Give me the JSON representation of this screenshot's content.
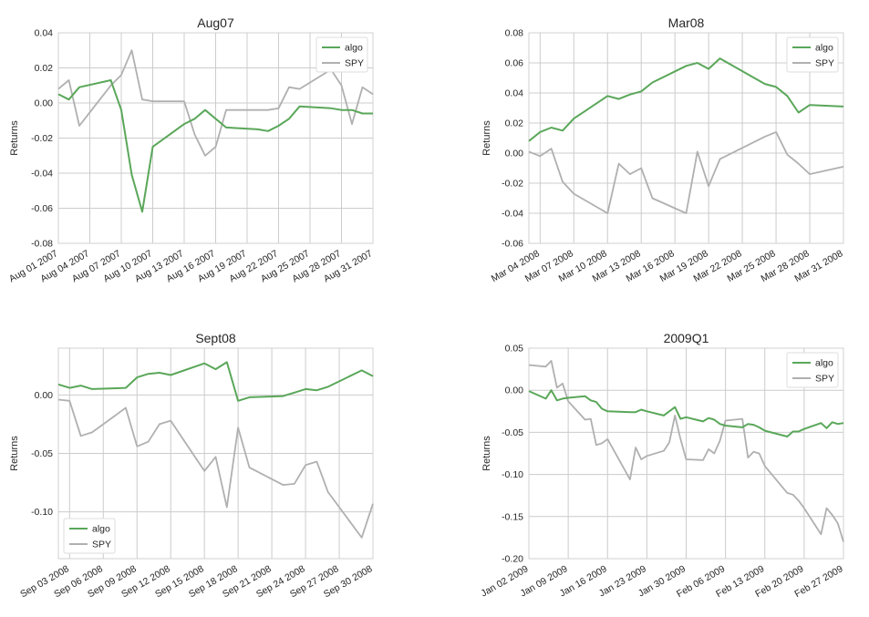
{
  "chart_data": [
    {
      "type": "line",
      "title": "Aug07",
      "ylabel": "Returns",
      "xlabel": "",
      "ylim": [
        -0.08,
        0.04
      ],
      "yticks": [
        "0.04",
        "0.02",
        "0.00",
        "-0.02",
        "-0.04",
        "-0.06",
        "-0.08"
      ],
      "xlim": [
        "2007-08-01",
        "2007-08-31"
      ],
      "xticks": [
        "Aug 01 2007",
        "Aug 04 2007",
        "Aug 07 2007",
        "Aug 10 2007",
        "Aug 13 2007",
        "Aug 16 2007",
        "Aug 19 2007",
        "Aug 22 2007",
        "Aug 25 2007",
        "Aug 28 2007",
        "Aug 31 2007"
      ],
      "grid": true,
      "legend": "upper right",
      "colors": {
        "algo": "#5aa75a",
        "SPY": "#b0b0b0"
      },
      "series": [
        {
          "name": "algo",
          "x": [
            "2007-08-01",
            "2007-08-02",
            "2007-08-03",
            "2007-08-06",
            "2007-08-07",
            "2007-08-08",
            "2007-08-09",
            "2007-08-10",
            "2007-08-13",
            "2007-08-14",
            "2007-08-15",
            "2007-08-16",
            "2007-08-17",
            "2007-08-20",
            "2007-08-21",
            "2007-08-22",
            "2007-08-23",
            "2007-08-24",
            "2007-08-27",
            "2007-08-28",
            "2007-08-29",
            "2007-08-30",
            "2007-08-31"
          ],
          "values": [
            0.005,
            0.002,
            0.009,
            0.013,
            -0.004,
            -0.041,
            -0.062,
            -0.025,
            -0.012,
            -0.009,
            -0.004,
            -0.009,
            -0.014,
            -0.015,
            -0.016,
            -0.013,
            -0.009,
            -0.002,
            -0.003,
            -0.004,
            -0.004,
            -0.006,
            -0.006
          ]
        },
        {
          "name": "SPY",
          "x": [
            "2007-08-01",
            "2007-08-02",
            "2007-08-03",
            "2007-08-06",
            "2007-08-07",
            "2007-08-08",
            "2007-08-09",
            "2007-08-10",
            "2007-08-13",
            "2007-08-14",
            "2007-08-15",
            "2007-08-16",
            "2007-08-17",
            "2007-08-20",
            "2007-08-21",
            "2007-08-22",
            "2007-08-23",
            "2007-08-24",
            "2007-08-27",
            "2007-08-28",
            "2007-08-29",
            "2007-08-30",
            "2007-08-31"
          ],
          "values": [
            0.008,
            0.013,
            -0.013,
            0.01,
            0.016,
            0.03,
            0.002,
            0.001,
            0.001,
            -0.018,
            -0.03,
            -0.025,
            -0.004,
            -0.004,
            -0.004,
            -0.003,
            0.009,
            0.008,
            0.019,
            0.01,
            -0.012,
            0.009,
            0.005
          ]
        }
      ]
    },
    {
      "type": "line",
      "title": "Mar08",
      "ylabel": "Returns",
      "xlabel": "",
      "ylim": [
        -0.06,
        0.08
      ],
      "yticks": [
        "0.08",
        "0.06",
        "0.04",
        "0.02",
        "0.00",
        "-0.02",
        "-0.04",
        "-0.06"
      ],
      "xlim": [
        "2008-03-03",
        "2008-03-31"
      ],
      "xticks": [
        "Mar 04 2008",
        "Mar 07 2008",
        "Mar 10 2008",
        "Mar 13 2008",
        "Mar 16 2008",
        "Mar 19 2008",
        "Mar 22 2008",
        "Mar 25 2008",
        "Mar 28 2008",
        "Mar 31 2008"
      ],
      "grid": true,
      "legend": "upper right",
      "colors": {
        "algo": "#5aa75a",
        "SPY": "#b0b0b0"
      },
      "series": [
        {
          "name": "algo",
          "x": [
            "2008-03-03",
            "2008-03-04",
            "2008-03-05",
            "2008-03-06",
            "2008-03-07",
            "2008-03-10",
            "2008-03-11",
            "2008-03-12",
            "2008-03-13",
            "2008-03-14",
            "2008-03-17",
            "2008-03-18",
            "2008-03-19",
            "2008-03-20",
            "2008-03-24",
            "2008-03-25",
            "2008-03-26",
            "2008-03-27",
            "2008-03-28",
            "2008-03-31"
          ],
          "values": [
            0.008,
            0.014,
            0.017,
            0.015,
            0.023,
            0.038,
            0.036,
            0.039,
            0.041,
            0.047,
            0.058,
            0.06,
            0.056,
            0.063,
            0.046,
            0.044,
            0.038,
            0.027,
            0.032,
            0.031
          ]
        },
        {
          "name": "SPY",
          "x": [
            "2008-03-03",
            "2008-03-04",
            "2008-03-05",
            "2008-03-06",
            "2008-03-07",
            "2008-03-10",
            "2008-03-11",
            "2008-03-12",
            "2008-03-13",
            "2008-03-14",
            "2008-03-17",
            "2008-03-18",
            "2008-03-19",
            "2008-03-20",
            "2008-03-24",
            "2008-03-25",
            "2008-03-26",
            "2008-03-27",
            "2008-03-28",
            "2008-03-31"
          ],
          "values": [
            0.001,
            -0.002,
            0.003,
            -0.019,
            -0.027,
            -0.04,
            -0.007,
            -0.014,
            -0.01,
            -0.03,
            -0.04,
            0.001,
            -0.022,
            -0.004,
            0.011,
            0.014,
            -0.001,
            -0.007,
            -0.014,
            -0.009
          ]
        }
      ]
    },
    {
      "type": "line",
      "title": "Sept08",
      "ylabel": "Returns",
      "xlabel": "",
      "ylim": [
        -0.14,
        0.04
      ],
      "yticks": [
        "0.00",
        "-0.05",
        "-0.10"
      ],
      "xlim": [
        "2008-09-02",
        "2008-09-30"
      ],
      "xticks": [
        "Sep 03 2008",
        "Sep 06 2008",
        "Sep 09 2008",
        "Sep 12 2008",
        "Sep 15 2008",
        "Sep 18 2008",
        "Sep 21 2008",
        "Sep 24 2008",
        "Sep 27 2008",
        "Sep 30 2008"
      ],
      "grid": true,
      "legend": "lower left",
      "colors": {
        "algo": "#5aa75a",
        "SPY": "#b0b0b0"
      },
      "series": [
        {
          "name": "algo",
          "x": [
            "2008-09-02",
            "2008-09-03",
            "2008-09-04",
            "2008-09-05",
            "2008-09-08",
            "2008-09-09",
            "2008-09-10",
            "2008-09-11",
            "2008-09-12",
            "2008-09-15",
            "2008-09-16",
            "2008-09-17",
            "2008-09-18",
            "2008-09-19",
            "2008-09-22",
            "2008-09-23",
            "2008-09-24",
            "2008-09-25",
            "2008-09-26",
            "2008-09-29",
            "2008-09-30"
          ],
          "values": [
            0.009,
            0.006,
            0.008,
            0.005,
            0.006,
            0.015,
            0.018,
            0.019,
            0.017,
            0.027,
            0.022,
            0.028,
            -0.005,
            -0.002,
            -0.001,
            0.002,
            0.005,
            0.004,
            0.007,
            0.021,
            0.016
          ]
        },
        {
          "name": "SPY",
          "x": [
            "2008-09-02",
            "2008-09-03",
            "2008-09-04",
            "2008-09-05",
            "2008-09-08",
            "2008-09-09",
            "2008-09-10",
            "2008-09-11",
            "2008-09-12",
            "2008-09-15",
            "2008-09-16",
            "2008-09-17",
            "2008-09-18",
            "2008-09-19",
            "2008-09-22",
            "2008-09-23",
            "2008-09-24",
            "2008-09-25",
            "2008-09-26",
            "2008-09-29",
            "2008-09-30"
          ],
          "values": [
            -0.004,
            -0.005,
            -0.035,
            -0.032,
            -0.011,
            -0.044,
            -0.04,
            -0.025,
            -0.022,
            -0.065,
            -0.053,
            -0.096,
            -0.028,
            -0.062,
            -0.077,
            -0.076,
            -0.06,
            -0.057,
            -0.083,
            -0.122,
            -0.093
          ]
        }
      ]
    },
    {
      "type": "line",
      "title": "2009Q1",
      "ylabel": "Returns",
      "xlabel": "",
      "ylim": [
        -0.2,
        0.05
      ],
      "yticks": [
        "0.05",
        "0.00",
        "-0.05",
        "-0.10",
        "-0.15",
        "-0.20"
      ],
      "xlim": [
        "2009-01-02",
        "2009-02-27"
      ],
      "xticks": [
        "Jan 02 2009",
        "Jan 09 2009",
        "Jan 16 2009",
        "Jan 23 2009",
        "Jan 30 2009",
        "Feb 06 2009",
        "Feb 13 2009",
        "Feb 20 2009",
        "Feb 27 2009"
      ],
      "grid": true,
      "legend": "upper right",
      "colors": {
        "algo": "#5aa75a",
        "SPY": "#b0b0b0"
      },
      "series": [
        {
          "name": "algo",
          "x": [
            "2009-01-02",
            "2009-01-05",
            "2009-01-06",
            "2009-01-07",
            "2009-01-08",
            "2009-01-09",
            "2009-01-12",
            "2009-01-13",
            "2009-01-14",
            "2009-01-15",
            "2009-01-16",
            "2009-01-20",
            "2009-01-21",
            "2009-01-22",
            "2009-01-23",
            "2009-01-26",
            "2009-01-27",
            "2009-01-28",
            "2009-01-29",
            "2009-01-30",
            "2009-02-02",
            "2009-02-03",
            "2009-02-04",
            "2009-02-05",
            "2009-02-06",
            "2009-02-09",
            "2009-02-10",
            "2009-02-11",
            "2009-02-12",
            "2009-02-13",
            "2009-02-17",
            "2009-02-18",
            "2009-02-19",
            "2009-02-20",
            "2009-02-23",
            "2009-02-24",
            "2009-02-25",
            "2009-02-26",
            "2009-02-27"
          ],
          "values": [
            -0.001,
            -0.01,
            0.0,
            -0.012,
            -0.01,
            -0.009,
            -0.007,
            -0.012,
            -0.014,
            -0.022,
            -0.025,
            -0.026,
            -0.026,
            -0.023,
            -0.025,
            -0.03,
            -0.025,
            -0.02,
            -0.034,
            -0.032,
            -0.037,
            -0.033,
            -0.035,
            -0.04,
            -0.042,
            -0.044,
            -0.04,
            -0.041,
            -0.044,
            -0.048,
            -0.055,
            -0.049,
            -0.049,
            -0.046,
            -0.039,
            -0.045,
            -0.038,
            -0.04,
            -0.039
          ]
        },
        {
          "name": "SPY",
          "x": [
            "2009-01-02",
            "2009-01-05",
            "2009-01-06",
            "2009-01-07",
            "2009-01-08",
            "2009-01-09",
            "2009-01-12",
            "2009-01-13",
            "2009-01-14",
            "2009-01-15",
            "2009-01-16",
            "2009-01-20",
            "2009-01-21",
            "2009-01-22",
            "2009-01-23",
            "2009-01-26",
            "2009-01-27",
            "2009-01-28",
            "2009-01-29",
            "2009-01-30",
            "2009-02-02",
            "2009-02-03",
            "2009-02-04",
            "2009-02-05",
            "2009-02-06",
            "2009-02-09",
            "2009-02-10",
            "2009-02-11",
            "2009-02-12",
            "2009-02-13",
            "2009-02-17",
            "2009-02-18",
            "2009-02-19",
            "2009-02-20",
            "2009-02-23",
            "2009-02-24",
            "2009-02-25",
            "2009-02-26",
            "2009-02-27"
          ],
          "values": [
            0.03,
            0.028,
            0.035,
            0.003,
            0.008,
            -0.013,
            -0.035,
            -0.034,
            -0.065,
            -0.063,
            -0.058,
            -0.106,
            -0.068,
            -0.082,
            -0.078,
            -0.072,
            -0.062,
            -0.03,
            -0.058,
            -0.082,
            -0.083,
            -0.07,
            -0.075,
            -0.06,
            -0.036,
            -0.034,
            -0.08,
            -0.073,
            -0.075,
            -0.09,
            -0.122,
            -0.124,
            -0.131,
            -0.14,
            -0.171,
            -0.14,
            -0.148,
            -0.158,
            -0.18
          ]
        }
      ]
    }
  ]
}
